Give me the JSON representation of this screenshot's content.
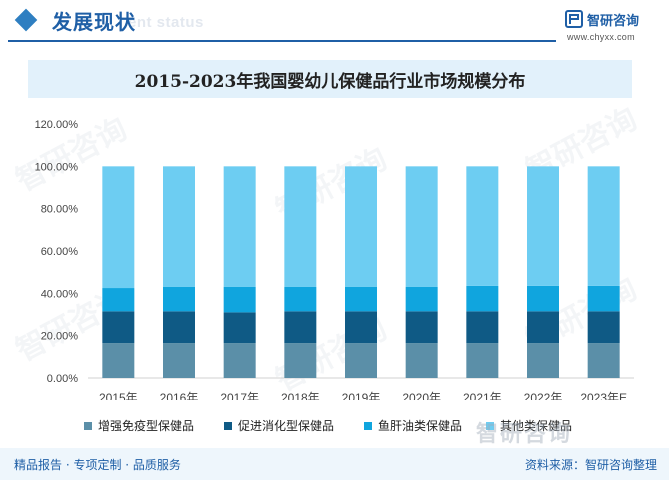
{
  "header": {
    "title": "发展现状",
    "ghost_text": "ent status",
    "brand_name": "智研咨询",
    "brand_url": "www.chyxx.com",
    "accent_color": "#1f5fa6"
  },
  "watermark_text": "智研咨询",
  "footer": {
    "left_text": "精品报告 · 专项定制 · 品质服务",
    "source_text": "资料来源：智研咨询整理",
    "mark_text": "智研咨询"
  },
  "chart_data": {
    "type": "bar",
    "stacked": true,
    "title": "2015-2023年我国婴幼儿保健品行业市场规模分布",
    "categories": [
      "2015年",
      "2016年",
      "2017年",
      "2018年",
      "2019年",
      "2020年",
      "2021年",
      "2022年",
      "2023年E"
    ],
    "y_ticks": [
      "0.00%",
      "20.00%",
      "40.00%",
      "60.00%",
      "80.00%",
      "100.00%",
      "120.00%"
    ],
    "ylim": [
      0,
      120
    ],
    "grid": false,
    "legend_position": "bottom",
    "series": [
      {
        "name": "增强免疫型保健品",
        "color": "#5b8fa8",
        "values": [
          16.5,
          16.5,
          16.5,
          16.5,
          16.5,
          16.5,
          16.5,
          16.5,
          16.5
        ]
      },
      {
        "name": "促进消化型保健品",
        "color": "#0f5a85",
        "values": [
          15.0,
          15.0,
          14.5,
          15.0,
          15.0,
          15.0,
          15.0,
          15.0,
          15.0
        ]
      },
      {
        "name": "鱼肝油类保健品",
        "color": "#10a5de",
        "values": [
          11.0,
          11.5,
          12.0,
          11.5,
          11.5,
          11.5,
          12.0,
          12.0,
          12.0
        ]
      },
      {
        "name": "其他类保健品",
        "color": "#6dcdf2",
        "values": [
          57.5,
          57.0,
          57.0,
          57.0,
          57.0,
          57.0,
          56.5,
          56.5,
          56.5
        ]
      }
    ]
  }
}
